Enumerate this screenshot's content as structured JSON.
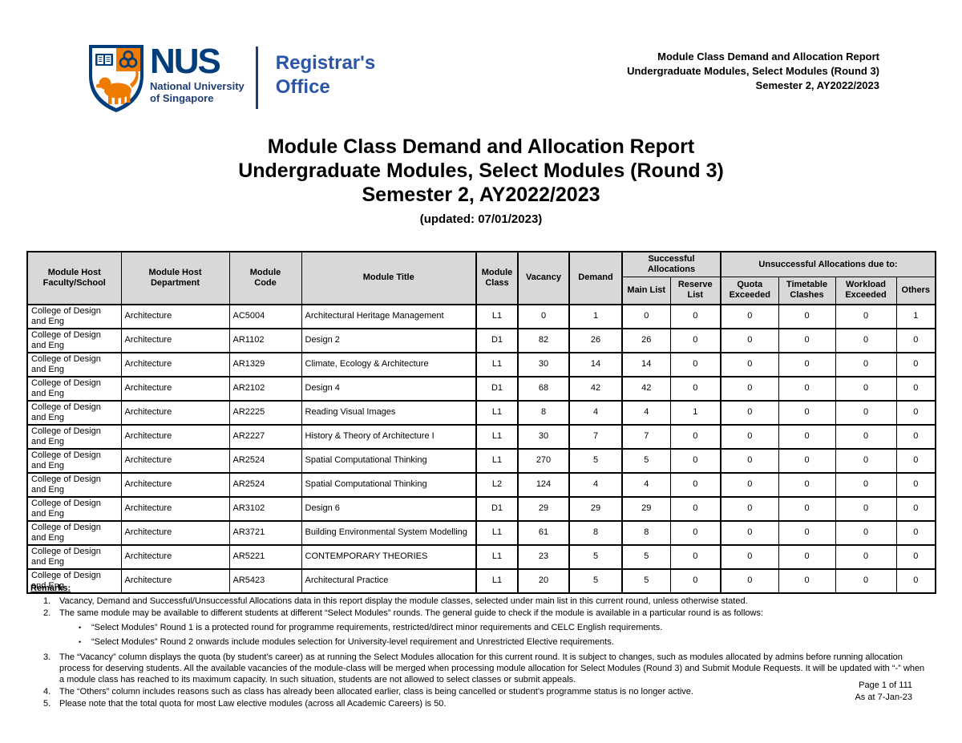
{
  "colors": {
    "nus_blue": "#003D7C",
    "nus_orange": "#EF7B00",
    "office_blue": "#2B55A7",
    "table_header_bg": "#D8D8D8"
  },
  "logo": {
    "acronym": "NUS",
    "name_line1": "National University",
    "name_line2": "of Singapore",
    "office_line1": "Registrar's",
    "office_line2": "Office"
  },
  "header_right": {
    "line1": "Module Class Demand and Allocation Report",
    "line2": "Undergraduate Modules, Select Modules (Round 3)",
    "line3": "Semester 2, AY2022/2023"
  },
  "title": {
    "line1": "Module Class Demand and Allocation Report",
    "line2": "Undergraduate Modules, Select Modules (Round 3)",
    "line3": "Semester 2, AY2022/2023",
    "updated": "(updated: 07/01/2023)"
  },
  "table": {
    "headers": {
      "faculty": "Module Host Faculty/School",
      "department": "Module Host Department",
      "code": "Module Code",
      "module_title": "Module Title",
      "module_class": "Module Class",
      "vacancy": "Vacancy",
      "demand": "Demand",
      "successful_group": "Successful Allocations",
      "main_list": "Main List",
      "reserve_list": "Reserve List",
      "unsuccessful_group": "Unsuccessful Allocations due to:",
      "quota": "Quota Exceeded",
      "timetable": "Timetable Clashes",
      "workload": "Workload Exceeded",
      "others": "Others"
    },
    "rows": [
      [
        "College of Design and Eng",
        "Architecture",
        "AC5004",
        "Architectural Heritage Management",
        "L1",
        "0",
        "1",
        "0",
        "0",
        "0",
        "0",
        "0",
        "1"
      ],
      [
        "College of Design and Eng",
        "Architecture",
        "AR1102",
        "Design 2",
        "D1",
        "82",
        "26",
        "26",
        "0",
        "0",
        "0",
        "0",
        "0"
      ],
      [
        "College of Design and Eng",
        "Architecture",
        "AR1329",
        "Climate, Ecology & Architecture",
        "L1",
        "30",
        "14",
        "14",
        "0",
        "0",
        "0",
        "0",
        "0"
      ],
      [
        "College of Design and Eng",
        "Architecture",
        "AR2102",
        "Design 4",
        "D1",
        "68",
        "42",
        "42",
        "0",
        "0",
        "0",
        "0",
        "0"
      ],
      [
        "College of Design and Eng",
        "Architecture",
        "AR2225",
        "Reading Visual Images",
        "L1",
        "8",
        "4",
        "4",
        "1",
        "0",
        "0",
        "0",
        "0"
      ],
      [
        "College of Design and Eng",
        "Architecture",
        "AR2227",
        "History & Theory of Architecture I",
        "L1",
        "30",
        "7",
        "7",
        "0",
        "0",
        "0",
        "0",
        "0"
      ],
      [
        "College of Design and Eng",
        "Architecture",
        "AR2524",
        "Spatial Computational Thinking",
        "L1",
        "270",
        "5",
        "5",
        "0",
        "0",
        "0",
        "0",
        "0"
      ],
      [
        "College of Design and Eng",
        "Architecture",
        "AR2524",
        "Spatial Computational Thinking",
        "L2",
        "124",
        "4",
        "4",
        "0",
        "0",
        "0",
        "0",
        "0"
      ],
      [
        "College of Design and Eng",
        "Architecture",
        "AR3102",
        "Design 6",
        "D1",
        "29",
        "29",
        "29",
        "0",
        "0",
        "0",
        "0",
        "0"
      ],
      [
        "College of Design and Eng",
        "Architecture",
        "AR3721",
        "Building Environmental System Modelling",
        "L1",
        "61",
        "8",
        "8",
        "0",
        "0",
        "0",
        "0",
        "0"
      ],
      [
        "College of Design and Eng",
        "Architecture",
        "AR5221",
        "CONTEMPORARY THEORIES",
        "L1",
        "23",
        "5",
        "5",
        "0",
        "0",
        "0",
        "0",
        "0"
      ],
      [
        "College of Design and Eng",
        "Architecture",
        "AR5423",
        "Architectural Practice",
        "L1",
        "20",
        "5",
        "5",
        "0",
        "0",
        "0",
        "0",
        "0"
      ]
    ]
  },
  "remarks": {
    "heading": "Remarks:",
    "items": [
      {
        "num": "1.",
        "text": "Vacancy, Demand and Successful/Unsuccessful Allocations data in this report display the module classes, selected under main list in this current round, unless otherwise stated."
      },
      {
        "num": "2.",
        "text": "The same module may be available to different students at different “Select Modules” rounds. The general guide to check if the module is available in a particular round is as follows:",
        "bullets": [
          "“Select Modules” Round 1 is a protected round for programme requirements, restricted/direct minor requirements and CELC English requirements.",
          "“Select Modules” Round 2 onwards include modules selection for University-level requirement and Unrestricted Elective requirements."
        ]
      },
      {
        "num": "3.",
        "text": "The “Vacancy” column displays the quota (by student’s career) as at running the Select Modules allocation for this current round. It is subject to changes, such as modules allocated by admins before running allocation process for deserving students. All the available vacancies of the module-class will be merged when processing module allocation for Select Modules (Round 3) and Submit Module Requests. It will be updated with “-” when a module class has reached to its maximum capacity. In such situation, students are not allowed to select classes or submit appeals."
      },
      {
        "num": "4.",
        "text": "The “Others” column includes reasons such as class has already been allocated earlier, class is being cancelled or student’s programme status is no longer active."
      },
      {
        "num": "5.",
        "text": "Please note that the total quota for most Law elective modules (across all Academic Careers) is 50."
      }
    ]
  },
  "footer": {
    "page": "Page 1 of 111",
    "as_at": "As at 7-Jan-23"
  }
}
